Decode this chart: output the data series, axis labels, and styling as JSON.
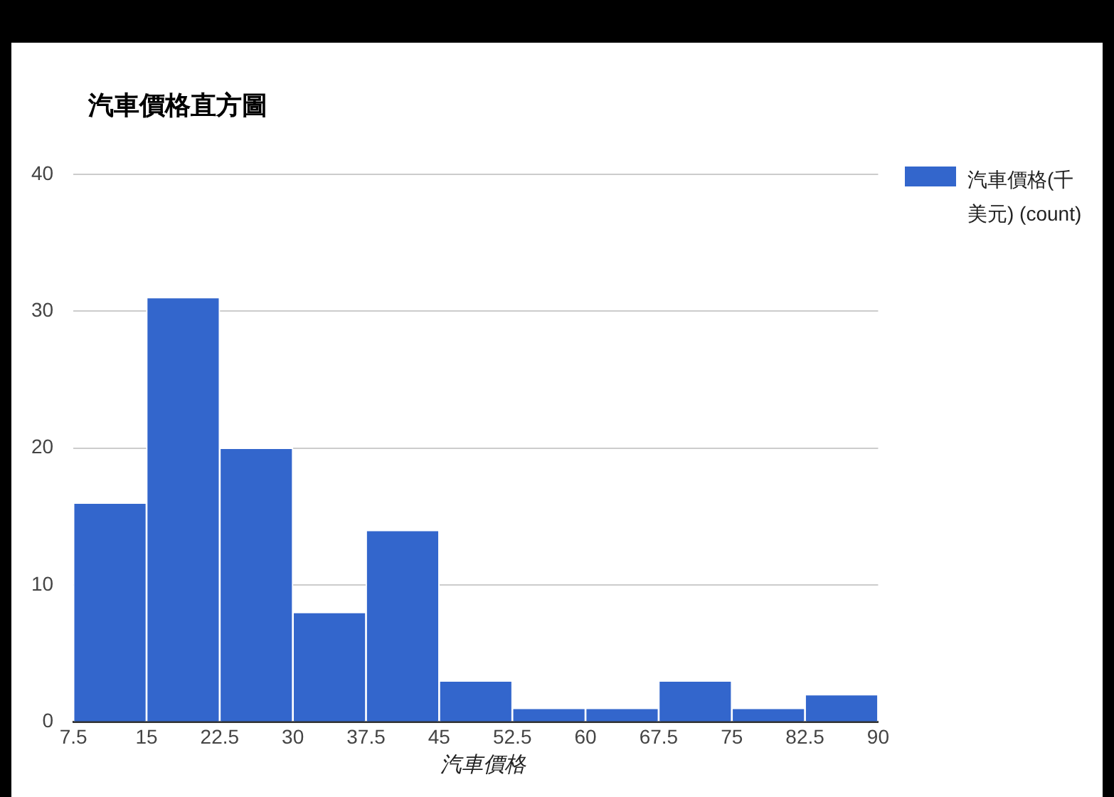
{
  "chart_data": {
    "type": "histogram",
    "title": "汽車價格直方圖",
    "xlabel": "汽車價格",
    "bins": [
      7.5,
      15,
      22.5,
      30,
      37.5,
      45,
      52.5,
      60,
      67.5,
      75,
      82.5,
      90
    ],
    "series": [
      {
        "name": "汽車價格(千美元) (count)",
        "color": "#3366cc",
        "values": [
          16,
          31,
          20,
          8,
          14,
          3,
          1,
          1,
          3,
          1,
          2
        ]
      }
    ],
    "xlim": [
      7.5,
      90
    ],
    "xticks": [
      7.5,
      15,
      22.5,
      30,
      37.5,
      45,
      52.5,
      60,
      67.5,
      75,
      82.5,
      90
    ],
    "ylim": [
      0,
      40
    ],
    "yticks": [
      0,
      10,
      20,
      30,
      40
    ],
    "grid": "y",
    "legend": "right"
  }
}
